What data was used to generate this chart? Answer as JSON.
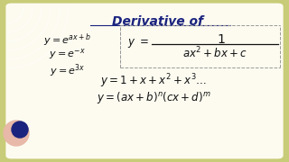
{
  "title": "Derivative of",
  "title_color": "#1a237e",
  "bg_outer": "#c8cc78",
  "bg_inner": "#fdfbf0",
  "formulas_left": [
    "$y = e^{ax+b}$",
    "$y = e^{-x}$",
    "$y = e^{3x}$"
  ],
  "formula_line4": "$y = 1 + x + x^2 + x^3 \\ldots$",
  "formula_line5": "$y = (ax + b)^n(cx + d)^m$",
  "text_color": "#111111",
  "dashed_box_color": "#999999",
  "circle_color": "#1a237e",
  "decor_circle_color": "#e8b8a8",
  "arc_color": "#ffffff"
}
